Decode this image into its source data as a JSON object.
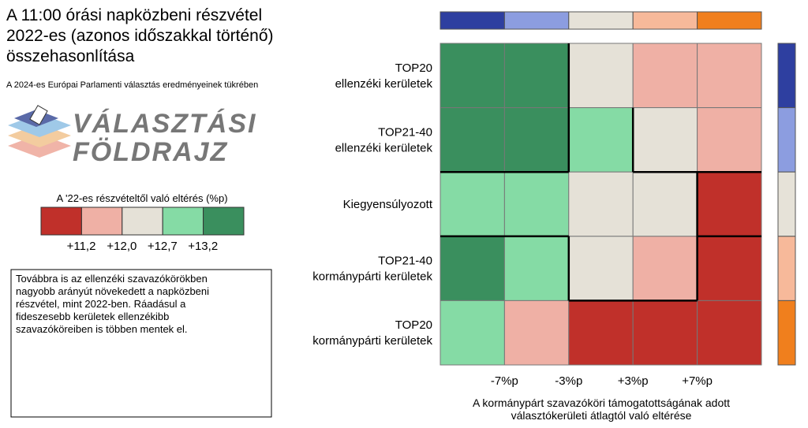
{
  "header": {
    "title_lines": [
      "A 11:00 órási napközbeni részvétel",
      "2022-es (azonos időszakkal történő)",
      "összehasonlítása"
    ],
    "subtitle": "A 2024-es Európai Parlamenti választás eredményeinek tükrében"
  },
  "logo": {
    "lines": [
      "VÁLASZTÁSI",
      "FÖLDRAJZ"
    ]
  },
  "legend": {
    "title": "A '22-es részvételtől való eltérés (%p)",
    "colors": [
      "#c0302a",
      "#efb0a5",
      "#e5e1d7",
      "#85dba5",
      "#3a8f5e"
    ],
    "labels": [
      "+11,2",
      "+12,0",
      "+12,7",
      "+13,2"
    ]
  },
  "note": "Továbbra is az ellenzéki szavazókörökben nagyobb arányút növekedett a napközbeni részvétel, mint 2022-ben. Ráadásul a fideszesebb kerületek ellenzékibb szavazóköreiben is többen mentek el.",
  "top_bar": {
    "colors": [
      "#2e3fa0",
      "#8c9de0",
      "#e6e2d8",
      "#f7b99a",
      "#f07f1d"
    ]
  },
  "side_bar": {
    "colors": [
      "#2e3fa0",
      "#8c9de0",
      "#e6e2d8",
      "#f7b99a",
      "#f07f1d"
    ]
  },
  "grid": {
    "rows": [
      "TOP20\nellenzéki kerületek",
      "TOP21-40\nellenzéki kerületek",
      "Kiegyensúlyozott",
      "TOP21-40\nkormánypárti kerületek",
      "TOP20\nkormánypárti kerületek"
    ],
    "cells": [
      [
        "#3a8f5e",
        "#3a8f5e",
        "#e5e1d7",
        "#efb0a5",
        "#efb0a5"
      ],
      [
        "#3a8f5e",
        "#3a8f5e",
        "#85dba5",
        "#e5e1d7",
        "#efb0a5"
      ],
      [
        "#85dba5",
        "#85dba5",
        "#e5e1d7",
        "#e5e1d7",
        "#c0302a"
      ],
      [
        "#3a8f5e",
        "#85dba5",
        "#e5e1d7",
        "#efb0a5",
        "#c0302a"
      ],
      [
        "#85dba5",
        "#efb0a5",
        "#c0302a",
        "#c0302a",
        "#c0302a"
      ]
    ],
    "x_ticks": [
      "-7%p",
      "-3%p",
      "+3%p",
      "+7%p"
    ],
    "x_title_lines": [
      "A kormánypárt szavazóköri támogatottságának adott",
      "választókerületi átlagtól való eltérése"
    ]
  }
}
